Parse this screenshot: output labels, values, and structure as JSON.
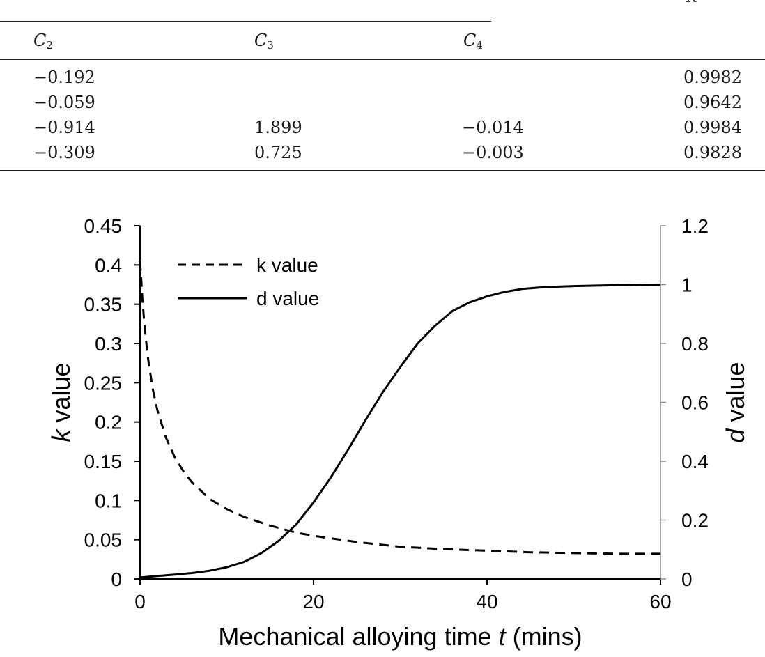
{
  "table": {
    "corner_label": "R",
    "headers": [
      {
        "base": "C",
        "sub": "2"
      },
      {
        "base": "C",
        "sub": "3"
      },
      {
        "base": "C",
        "sub": "4"
      }
    ],
    "rows": [
      [
        "−0.192",
        "",
        "",
        "0.9982"
      ],
      [
        "−0.059",
        "",
        "",
        "0.9642"
      ],
      [
        "−0.914",
        "1.899",
        "−0.014",
        "0.9984"
      ],
      [
        "−0.309",
        "0.725",
        "−0.003",
        "0.9828"
      ]
    ]
  },
  "chart_data": {
    "type": "line",
    "xlabel_prefix": "Mechanical alloying time ",
    "xlabel_var": "t",
    "xlabel_suffix": " (mins)",
    "ylabel_left_var": "k",
    "ylabel_left_suffix": " value",
    "ylabel_right_var": "d",
    "ylabel_right_suffix": " value",
    "xlim": [
      0,
      60
    ],
    "ylim_left": [
      0,
      0.45
    ],
    "ylim_right": [
      0,
      1.2
    ],
    "x_ticks": [
      "0",
      "20",
      "40",
      "60"
    ],
    "y_left_ticks": [
      "0",
      "0.05",
      "0.1",
      "0.15",
      "0.2",
      "0.25",
      "0.3",
      "0.35",
      "0.4",
      "0.45"
    ],
    "y_right_ticks": [
      "0",
      "0.2",
      "0.4",
      "0.6",
      "0.8",
      "1",
      "1.2"
    ],
    "legend_position": "top-left",
    "series": [
      {
        "name": "k value",
        "axis": "left",
        "style": "dashed",
        "x": [
          0,
          0.1,
          0.25,
          0.5,
          0.75,
          1,
          1.5,
          2,
          3,
          4,
          5,
          6,
          8,
          10,
          12,
          15,
          18,
          20,
          25,
          30,
          35,
          40,
          45,
          50,
          55,
          60
        ],
        "y": [
          0.405,
          0.39,
          0.36,
          0.325,
          0.298,
          0.275,
          0.24,
          0.215,
          0.18,
          0.155,
          0.137,
          0.123,
          0.102,
          0.089,
          0.079,
          0.068,
          0.059,
          0.055,
          0.047,
          0.041,
          0.038,
          0.036,
          0.034,
          0.033,
          0.032,
          0.032
        ]
      },
      {
        "name": "d value",
        "axis": "right",
        "style": "solid",
        "x": [
          0,
          2,
          4,
          6,
          8,
          10,
          12,
          14,
          16,
          18,
          20,
          22,
          24,
          26,
          28,
          30,
          32,
          34,
          36,
          38,
          40,
          42,
          44,
          46,
          48,
          50,
          55,
          60
        ],
        "y": [
          0.005,
          0.01,
          0.015,
          0.02,
          0.028,
          0.04,
          0.058,
          0.088,
          0.13,
          0.185,
          0.26,
          0.345,
          0.44,
          0.54,
          0.635,
          0.72,
          0.8,
          0.86,
          0.91,
          0.94,
          0.96,
          0.975,
          0.985,
          0.99,
          0.993,
          0.995,
          0.998,
          1.0
        ]
      }
    ]
  }
}
